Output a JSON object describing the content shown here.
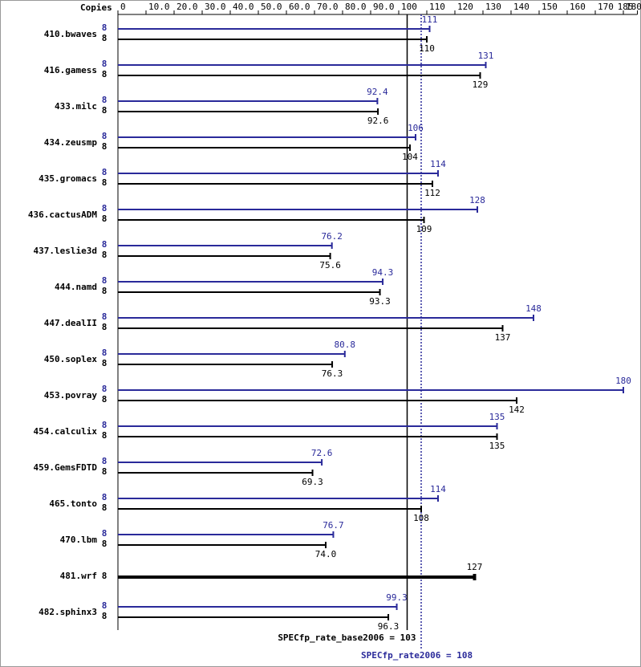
{
  "chart_data": {
    "type": "spec-bar",
    "x_axis_label": "Copies",
    "categories": [
      "410.bwaves",
      "416.gamess",
      "433.milc",
      "434.zeusmp",
      "435.gromacs",
      "436.cactusADM",
      "437.leslie3d",
      "444.namd",
      "447.dealII",
      "450.soplex",
      "453.povray",
      "454.calculix",
      "459.GemsFDTD",
      "465.tonto",
      "470.lbm",
      "481.wrf",
      "482.sphinx3"
    ],
    "series": [
      {
        "name": "peak",
        "color": "#2a2a9a",
        "copies": [
          8,
          8,
          8,
          8,
          8,
          8,
          8,
          8,
          8,
          8,
          8,
          8,
          8,
          8,
          8,
          null,
          8
        ],
        "values": [
          111,
          131,
          92.4,
          106,
          114,
          128,
          76.2,
          94.3,
          148,
          80.8,
          180,
          135,
          72.6,
          114,
          76.7,
          null,
          99.3
        ]
      },
      {
        "name": "base",
        "color": "#000000",
        "copies": [
          8,
          8,
          8,
          8,
          8,
          8,
          8,
          8,
          8,
          8,
          8,
          8,
          8,
          8,
          8,
          8,
          8
        ],
        "values": [
          110,
          129,
          92.6,
          104,
          112,
          109,
          75.6,
          93.3,
          137,
          76.3,
          142,
          135,
          69.3,
          108,
          74,
          127,
          96.3
        ],
        "value_labels": [
          "110",
          "129",
          "92.6",
          "104",
          "112",
          "109",
          "75.6",
          "93.3",
          "137",
          "76.3",
          "142",
          "135",
          "69.3",
          "108",
          "74.0",
          "127",
          "96.3"
        ]
      }
    ],
    "xlim": [
      0,
      185
    ],
    "xticks": [
      0,
      {
        "value": 10,
        "label": "10.0"
      },
      {
        "value": 20,
        "label": "20.0"
      },
      {
        "value": 30,
        "label": "30.0"
      },
      {
        "value": 40,
        "label": "40.0"
      },
      {
        "value": 50,
        "label": "50.0"
      },
      {
        "value": 60,
        "label": "60.0"
      },
      {
        "value": 70,
        "label": "70.0"
      },
      {
        "value": 80,
        "label": "80.0"
      },
      {
        "value": 90,
        "label": "90.0"
      },
      100,
      110,
      120,
      130,
      140,
      150,
      160,
      170,
      180,
      185
    ],
    "reference_lines": [
      {
        "label": "SPECfp_rate_base2006 = 103",
        "value": 103,
        "color": "#000000",
        "dashed": false
      },
      {
        "label": "SPECfp_rate2006 = 108",
        "value": 108,
        "color": "#2a2a9a",
        "dashed": true
      }
    ]
  }
}
